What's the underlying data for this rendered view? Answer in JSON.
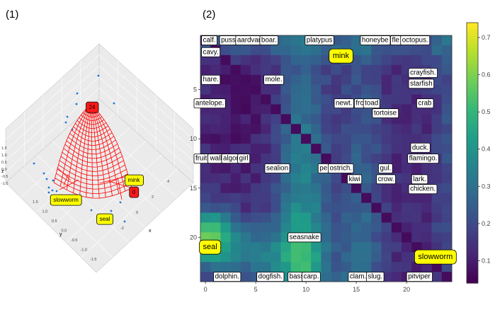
{
  "panel1": {
    "tag": "(1)",
    "axis_letters": {
      "x": "x",
      "y": "y",
      "z": "z"
    },
    "xticks": [
      "-1.5",
      "-1.0",
      "-0.5",
      "0.0",
      "0.5",
      "1.0",
      "1.5"
    ],
    "yticks": [
      "1.5",
      "1.0",
      "0.5",
      "0.0",
      "-0.5",
      "-1.0",
      "-1.5"
    ],
    "zticks": [
      "1.5",
      "1.0",
      "0.5",
      "0.0",
      "-0.5",
      "-1.0"
    ],
    "xticks_right": [
      "4",
      "2",
      "0",
      "-2"
    ],
    "markers": [
      {
        "text": "24",
        "color": "#ff1a1a"
      },
      {
        "text": "mink",
        "color": "#ffff00"
      },
      {
        "text": "0",
        "color": "#ff1a1a"
      },
      {
        "text": "slowworm",
        "color": "#ffff00"
      },
      {
        "text": "seal",
        "color": "#ffff00"
      }
    ],
    "surface_color": "#ff0000",
    "point_color": "#1f77d4"
  },
  "panel2": {
    "tag": "(2)",
    "colorbar": {
      "min": 0.04,
      "max": 0.74,
      "ticks": [
        "0.1",
        "0.2",
        "0.3",
        "0.4",
        "0.5",
        "0.6",
        "0.7"
      ],
      "colormap": "viridis"
    },
    "highlight_labels": [
      {
        "text": "mink",
        "col": 13.0,
        "row": 1.6
      },
      {
        "text": "seal",
        "col": 0.1,
        "row": 21.0
      },
      {
        "text": "slowworm",
        "col": 21.5,
        "row": 22.0
      }
    ],
    "labels": [
      {
        "text": "calf.",
        "col": 0.2,
        "row": 0.0
      },
      {
        "text": "puss",
        "col": 2.0,
        "row": 0.0
      },
      {
        "text": "aardvark.",
        "col": 3.6,
        "row": 0.0
      },
      {
        "text": "boar.",
        "col": 6.0,
        "row": 0.0
      },
      {
        "text": "platypus",
        "col": 10.5,
        "row": 0.0
      },
      {
        "text": "honeybe",
        "col": 16.0,
        "row": 0.0
      },
      {
        "text": "fle",
        "col": 19.0,
        "row": 0.0
      },
      {
        "text": "octopus.",
        "col": 20.0,
        "row": 0.0
      },
      {
        "text": "cavy.",
        "col": 0.2,
        "row": 1.2
      },
      {
        "text": "hare.",
        "col": 0.2,
        "row": 4.0
      },
      {
        "text": "mole.",
        "col": 6.4,
        "row": 4.0
      },
      {
        "text": "crayfish.",
        "col": 20.8,
        "row": 3.3
      },
      {
        "text": "starfish",
        "col": 20.8,
        "row": 4.4
      },
      {
        "text": "antelope.",
        "col": -1.0,
        "row": 6.4
      },
      {
        "text": "newt.",
        "col": 13.4,
        "row": 6.4
      },
      {
        "text": "frc",
        "col": 15.4,
        "row": 6.4
      },
      {
        "text": "toad",
        "col": 16.3,
        "row": 6.4
      },
      {
        "text": "crab",
        "col": 21.6,
        "row": 6.4
      },
      {
        "text": "tortoise",
        "col": 17.2,
        "row": 7.4
      },
      {
        "text": "duck.",
        "col": 21.0,
        "row": 10.9
      },
      {
        "text": "flamingo.",
        "col": 20.7,
        "row": 12.0
      },
      {
        "text": "fruitb",
        "col": -1.0,
        "row": 12.0
      },
      {
        "text": "wall",
        "col": 0.9,
        "row": 12.0
      },
      {
        "text": "algor",
        "col": 2.2,
        "row": 12.0
      },
      {
        "text": "girl",
        "col": 3.8,
        "row": 12.0
      },
      {
        "text": "sealion",
        "col": 6.5,
        "row": 13.0
      },
      {
        "text": "pe",
        "col": 11.8,
        "row": 13.0
      },
      {
        "text": "ostrich.",
        "col": 12.8,
        "row": 13.0
      },
      {
        "text": "gul.",
        "col": 17.8,
        "row": 13.0
      },
      {
        "text": "kiwi",
        "col": 14.7,
        "row": 14.1
      },
      {
        "text": "crow.",
        "col": 17.6,
        "row": 14.1
      },
      {
        "text": "lark.",
        "col": 21.1,
        "row": 14.1
      },
      {
        "text": "chicken.",
        "col": 20.8,
        "row": 15.1
      },
      {
        "text": "seasnake",
        "col": 8.8,
        "row": 20.0
      },
      {
        "text": "dolphin.",
        "col": 1.4,
        "row": 24.0
      },
      {
        "text": "dogfish.",
        "col": 5.7,
        "row": 24.0
      },
      {
        "text": "bass.",
        "col": 8.8,
        "row": 24.0
      },
      {
        "text": "carp.",
        "col": 10.2,
        "row": 24.0
      },
      {
        "text": "clam.",
        "col": 14.8,
        "row": 24.0
      },
      {
        "text": "slug.",
        "col": 16.6,
        "row": 24.0
      },
      {
        "text": "pitviper",
        "col": 20.6,
        "row": 24.0
      }
    ]
  },
  "chart_data": [
    {
      "type": "surface",
      "title": "",
      "subtitle": "(1)",
      "xlabel": "x",
      "ylabel": "y",
      "zlabel": "z",
      "xlim": [
        -1.5,
        1.5
      ],
      "ylim": [
        -1.5,
        1.5
      ],
      "xticks": [
        -1.5,
        -1.0,
        -0.5,
        0.0,
        0.5,
        1.0,
        1.5
      ],
      "yticks": [
        1.5,
        1.0,
        0.5,
        0.0,
        -0.5,
        -1.0,
        -1.5
      ],
      "zticks": [
        1.5,
        1.0,
        0.5,
        0.0,
        -0.5,
        -1.0
      ],
      "annotations": [
        "24",
        "mink",
        "0",
        "slowworm",
        "seal"
      ],
      "grid": true,
      "legend": "none"
    },
    {
      "type": "heatmap",
      "title": "",
      "subtitle": "(2)",
      "xlabel": "",
      "ylabel": "",
      "x_ticks": [
        0,
        5,
        10,
        15,
        20
      ],
      "y_ticks": [
        5,
        10,
        15,
        20
      ],
      "grid": false,
      "colorbar": {
        "min": 0.04,
        "max": 0.74,
        "ticks": [
          0.1,
          0.2,
          0.3,
          0.4,
          0.5,
          0.6,
          0.7
        ],
        "colormap": "viridis"
      },
      "cells": {
        "note": "",
        "n_rows": 25,
        "n_cols": 25
      },
      "annotations": [
        "mink",
        "seal",
        "slowworm"
      ],
      "legend": "right"
    }
  ]
}
